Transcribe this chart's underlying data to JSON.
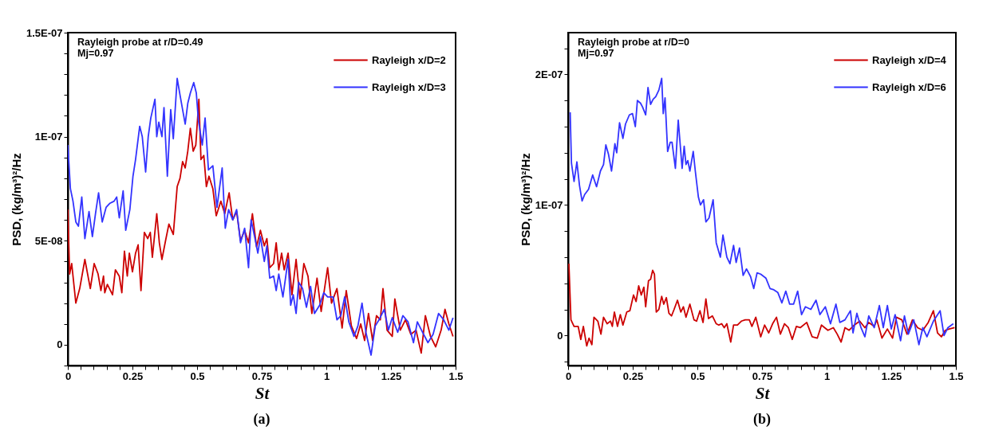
{
  "chart_data": [
    {
      "type": "line",
      "title": "(a)",
      "xlabel": "St",
      "ylabel": "PSD, (kg/m³)²/Hz",
      "annotations": [
        "Rayleigh probe at r/D=0.49",
        "Mj=0.97"
      ],
      "legend": "top right",
      "xlim": [
        0,
        1.5
      ],
      "ylim": [
        -1e-08,
        1.5e-07
      ],
      "xticks": [
        0,
        {
          "value": 0.05,
          "label": null
        },
        {
          "value": 0.1,
          "label": null
        },
        {
          "value": 0.15,
          "label": null
        },
        {
          "value": 0.2,
          "label": null
        },
        0.25,
        {
          "value": 0.3,
          "label": null
        },
        {
          "value": 0.35,
          "label": null
        },
        {
          "value": 0.4,
          "label": null
        },
        {
          "value": 0.45,
          "label": null
        },
        0.5,
        {
          "value": 0.55,
          "label": null
        },
        {
          "value": 0.6,
          "label": null
        },
        {
          "value": 0.65,
          "label": null
        },
        {
          "value": 0.7,
          "label": null
        },
        0.75,
        {
          "value": 0.8,
          "label": null
        },
        {
          "value": 0.85,
          "label": null
        },
        {
          "value": 0.9,
          "label": null
        },
        {
          "value": 0.95,
          "label": null
        },
        1,
        {
          "value": 1.05,
          "label": null
        },
        {
          "value": 1.1,
          "label": null
        },
        {
          "value": 1.15,
          "label": null
        },
        {
          "value": 1.2,
          "label": null
        },
        1.25,
        {
          "value": 1.3,
          "label": null
        },
        {
          "value": 1.35,
          "label": null
        },
        {
          "value": 1.4,
          "label": null
        },
        {
          "value": 1.45,
          "label": null
        },
        1.5
      ],
      "yticks": [
        {
          "value": -1e-08,
          "label": null
        },
        0,
        {
          "value": 1e-08,
          "label": null
        },
        {
          "value": 2e-08,
          "label": null
        },
        {
          "value": 3e-08,
          "label": null
        },
        {
          "value": 4e-08,
          "label": null
        },
        {
          "value": 5e-08,
          "label": "5E-08"
        },
        {
          "value": 6e-08,
          "label": null
        },
        {
          "value": 7e-08,
          "label": null
        },
        {
          "value": 8e-08,
          "label": null
        },
        {
          "value": 9e-08,
          "label": null
        },
        {
          "value": 1e-07,
          "label": "1E-07"
        },
        {
          "value": 1.1e-07,
          "label": null
        },
        {
          "value": 1.2e-07,
          "label": null
        },
        {
          "value": 1.3e-07,
          "label": null
        },
        {
          "value": 1.4e-07,
          "label": null
        },
        {
          "value": 1.5e-07,
          "label": "1.5E-07"
        }
      ],
      "series": [
        {
          "name": "Rayleigh x/D=2",
          "color": "#cc0000",
          "x": [
            0,
            0.007,
            0.015,
            0.031,
            0.046,
            0.066,
            0.087,
            0.102,
            0.117,
            0.128,
            0.138,
            0.143,
            0.153,
            0.173,
            0.184,
            0.199,
            0.209,
            0.219,
            0.23,
            0.238,
            0.25,
            0.262,
            0.272,
            0.283,
            0.296,
            0.309,
            0.319,
            0.327,
            0.344,
            0.354,
            0.364,
            0.378,
            0.391,
            0.408,
            0.423,
            0.434,
            0.444,
            0.454,
            0.464,
            0.474,
            0.485,
            0.495,
            0.507,
            0.515,
            0.526,
            0.536,
            0.546,
            0.561,
            0.574,
            0.592,
            0.607,
            0.624,
            0.638,
            0.653,
            0.668,
            0.684,
            0.699,
            0.714,
            0.73,
            0.745,
            0.76,
            0.77,
            0.781,
            0.796,
            0.806,
            0.816,
            0.827,
            0.837,
            0.852,
            0.867,
            0.883,
            0.898,
            0.913,
            0.929,
            0.944,
            0.964,
            0.98,
            1.005,
            1.02,
            1.041,
            1.061,
            1.077,
            1.097,
            1.117,
            1.133,
            1.148,
            1.163,
            1.179,
            1.194,
            1.209,
            1.219,
            1.235,
            1.255,
            1.265,
            1.286,
            1.306,
            1.327,
            1.347,
            1.367,
            1.383,
            1.403,
            1.423,
            1.444,
            1.459,
            1.474,
            1.49
          ],
          "values": [
            6.5e-08,
            3.4e-08,
            3.9e-08,
            2e-08,
            2.7e-08,
            4.1e-08,
            2.7e-08,
            3.9e-08,
            3.4e-08,
            2.6e-08,
            3.3e-08,
            2.5e-08,
            2.9e-08,
            2.4e-08,
            3.6e-08,
            3.3e-08,
            2.5e-08,
            4.5e-08,
            3.3e-08,
            4.4e-08,
            3.5e-08,
            4.4e-08,
            4.8e-08,
            2.6e-08,
            5.4e-08,
            5.1e-08,
            5.4e-08,
            4.2e-08,
            6.3e-08,
            4.9e-08,
            4.1e-08,
            5e-08,
            5.8e-08,
            5.3e-08,
            7.6e-08,
            8e-08,
            8.8e-08,
            8.5e-08,
            9.3e-08,
            1.04e-07,
            9.3e-08,
            9.6e-08,
            1.18e-07,
            8.9e-08,
            9.1e-08,
            7.6e-08,
            8.1e-08,
            7.5e-08,
            6.2e-08,
            6.9e-08,
            6.3e-08,
            7.3e-08,
            6e-08,
            6.4e-08,
            5e-08,
            5.5e-08,
            4.9e-08,
            6.3e-08,
            4.7e-08,
            5.5e-08,
            4.75e-08,
            5.1e-08,
            3.7e-08,
            3.9e-08,
            4.9e-08,
            3.6e-08,
            4.4e-08,
            3.6e-08,
            4.4e-08,
            2.4e-08,
            4.1e-08,
            2.2e-08,
            3.9e-08,
            3.3e-08,
            1.5e-08,
            3.2e-08,
            1.6e-08,
            3.7e-08,
            2e-08,
            2.7e-08,
            8e-09,
            2.6e-08,
            9e-09,
            3e-09,
            1e-08,
            2e-09,
            1.5e-08,
            2e-09,
            1.4e-08,
            1.2e-08,
            2.7e-08,
            7e-09,
            4e-09,
            2.2e-08,
            7e-09,
            1.2e-08,
            5e-09,
            7e-09,
            -4e-09,
            1.4e-08,
            4e-09,
            -1e-09,
            7e-09,
            1.7e-08,
            1e-08,
            4e-09
          ]
        },
        {
          "name": "Rayleigh x/D=3",
          "color": "#3333ff",
          "x": [
            0,
            0.01,
            0.02,
            0.031,
            0.041,
            0.054,
            0.066,
            0.082,
            0.095,
            0.107,
            0.119,
            0.133,
            0.148,
            0.163,
            0.179,
            0.189,
            0.199,
            0.214,
            0.224,
            0.24,
            0.252,
            0.262,
            0.278,
            0.288,
            0.301,
            0.311,
            0.321,
            0.337,
            0.344,
            0.352,
            0.364,
            0.372,
            0.385,
            0.398,
            0.408,
            0.423,
            0.434,
            0.444,
            0.454,
            0.464,
            0.474,
            0.487,
            0.497,
            0.505,
            0.52,
            0.531,
            0.544,
            0.561,
            0.577,
            0.597,
            0.609,
            0.622,
            0.638,
            0.653,
            0.668,
            0.684,
            0.699,
            0.709,
            0.724,
            0.735,
            0.745,
            0.76,
            0.77,
            0.781,
            0.796,
            0.806,
            0.816,
            0.832,
            0.852,
            0.862,
            0.872,
            0.883,
            0.893,
            0.908,
            0.923,
            0.939,
            0.954,
            0.974,
            0.99,
            1.005,
            1.026,
            1.041,
            1.056,
            1.071,
            1.087,
            1.107,
            1.122,
            1.138,
            1.153,
            1.173,
            1.189,
            1.204,
            1.224,
            1.24,
            1.255,
            1.276,
            1.296,
            1.316,
            1.337,
            1.352,
            1.372,
            1.393,
            1.413,
            1.434,
            1.454,
            1.474,
            1.49
          ],
          "values": [
            9.6e-08,
            7.5e-08,
            6.9e-08,
            5.9e-08,
            5.7e-08,
            7.1e-08,
            5.1e-08,
            6.4e-08,
            5.2e-08,
            6.3e-08,
            7.3e-08,
            5.9e-08,
            6.6e-08,
            6.8e-08,
            6.9e-08,
            7.1e-08,
            6.1e-08,
            7.4e-08,
            5.5e-08,
            6.5e-08,
            8.1e-08,
            8.9e-08,
            1.05e-07,
            1e-07,
            8.3e-08,
            1e-07,
            1.09e-07,
            1.18e-07,
            1e-07,
            1.07e-07,
            1e-07,
            1.14e-07,
            8.1e-08,
            1.13e-07,
            9.9e-08,
            1.28e-07,
            1.2e-07,
            1.13e-07,
            1.06e-07,
            1.16e-07,
            1.21e-07,
            1.26e-07,
            1.21e-07,
            1.08e-07,
            9.6e-08,
            1.09e-07,
            8.4e-08,
            8.6e-08,
            6.6e-08,
            8.5e-08,
            5.6e-08,
            6.5e-08,
            6e-08,
            6.5e-08,
            4.9e-08,
            5.6e-08,
            3.7e-08,
            6e-08,
            5.1e-08,
            4.4e-08,
            5.2e-08,
            4e-08,
            4.75e-08,
            3.2e-08,
            3.3e-08,
            2.6e-08,
            3.4e-08,
            2.3e-08,
            4.1e-08,
            1.9e-08,
            2.4e-08,
            1.5e-08,
            3e-08,
            2.7e-08,
            1.8e-08,
            2.8e-08,
            1.5e-08,
            1.9e-08,
            2.5e-08,
            2.3e-08,
            2.3e-08,
            1.2e-08,
            1.4e-08,
            2.3e-08,
            1.1e-08,
            4e-09,
            9e-09,
            2e-08,
            6e-09,
            -5e-09,
            9e-09,
            1.2e-08,
            1.7e-08,
            7e-09,
            1.3e-08,
            6e-09,
            1.4e-08,
            1.1e-08,
            1e-09,
            1.1e-08,
            6e-09,
            1e-09,
            5e-09,
            1.5e-08,
            1.2e-08,
            7e-09,
            1.3e-08
          ]
        }
      ]
    },
    {
      "type": "line",
      "title": "(b)",
      "xlabel": "St",
      "ylabel": "PSD, (kg/m³)²/Hz",
      "annotations": [
        "Rayleigh probe at r/D=0",
        "Mj=0.97"
      ],
      "legend": "top right",
      "xlim": [
        0,
        1.5
      ],
      "ylim": [
        -2.3e-08,
        2.32e-07
      ],
      "xticks": [
        0,
        {
          "value": 0.05,
          "label": null
        },
        {
          "value": 0.1,
          "label": null
        },
        {
          "value": 0.15,
          "label": null
        },
        {
          "value": 0.2,
          "label": null
        },
        0.25,
        {
          "value": 0.3,
          "label": null
        },
        {
          "value": 0.35,
          "label": null
        },
        {
          "value": 0.4,
          "label": null
        },
        {
          "value": 0.45,
          "label": null
        },
        0.5,
        {
          "value": 0.55,
          "label": null
        },
        {
          "value": 0.6,
          "label": null
        },
        {
          "value": 0.65,
          "label": null
        },
        {
          "value": 0.7,
          "label": null
        },
        0.75,
        {
          "value": 0.8,
          "label": null
        },
        {
          "value": 0.85,
          "label": null
        },
        {
          "value": 0.9,
          "label": null
        },
        {
          "value": 0.95,
          "label": null
        },
        1,
        {
          "value": 1.05,
          "label": null
        },
        {
          "value": 1.1,
          "label": null
        },
        {
          "value": 1.15,
          "label": null
        },
        {
          "value": 1.2,
          "label": null
        },
        1.25,
        {
          "value": 1.3,
          "label": null
        },
        {
          "value": 1.35,
          "label": null
        },
        {
          "value": 1.4,
          "label": null
        },
        {
          "value": 1.45,
          "label": null
        },
        1.5
      ],
      "yticks": [
        {
          "value": -2e-08,
          "label": null
        },
        0,
        {
          "value": 2e-08,
          "label": null
        },
        {
          "value": 4e-08,
          "label": null
        },
        {
          "value": 6e-08,
          "label": null
        },
        {
          "value": 8e-08,
          "label": null
        },
        {
          "value": 1e-07,
          "label": "1E-07"
        },
        {
          "value": 1.2e-07,
          "label": null
        },
        {
          "value": 1.4e-07,
          "label": null
        },
        {
          "value": 1.6e-07,
          "label": null
        },
        {
          "value": 1.8e-07,
          "label": null
        },
        {
          "value": 2e-07,
          "label": "2E-07"
        },
        {
          "value": 2.2e-07,
          "label": null
        }
      ],
      "series": [
        {
          "name": "Rayleigh x/D=4",
          "color": "#cc0000",
          "x": [
            0.003,
            0.011,
            0.023,
            0.039,
            0.049,
            0.059,
            0.072,
            0.081,
            0.092,
            0.1,
            0.115,
            0.127,
            0.137,
            0.151,
            0.164,
            0.171,
            0.179,
            0.191,
            0.202,
            0.212,
            0.227,
            0.239,
            0.253,
            0.263,
            0.273,
            0.283,
            0.293,
            0.3,
            0.311,
            0.319,
            0.327,
            0.334,
            0.341,
            0.351,
            0.362,
            0.37,
            0.38,
            0.39,
            0.4,
            0.41,
            0.423,
            0.436,
            0.446,
            0.456,
            0.471,
            0.487,
            0.497,
            0.51,
            0.522,
            0.533,
            0.543,
            0.558,
            0.573,
            0.583,
            0.594,
            0.604,
            0.614,
            0.629,
            0.64,
            0.655,
            0.67,
            0.685,
            0.701,
            0.711,
            0.726,
            0.745,
            0.76,
            0.776,
            0.791,
            0.806,
            0.821,
            0.837,
            0.852,
            0.867,
            0.883,
            0.898,
            0.923,
            0.944,
            0.964,
            0.98,
            1.005,
            1.026,
            1.041,
            1.056,
            1.071,
            1.087,
            1.107,
            1.128,
            1.148,
            1.163,
            1.184,
            1.194,
            1.214,
            1.235,
            1.255,
            1.27,
            1.291,
            1.311,
            1.332,
            1.352,
            1.372,
            1.393,
            1.413,
            1.429,
            1.444,
            1.459,
            1.474,
            1.495
          ],
          "values": [
            5.5e-08,
            1.2e-08,
            7e-09,
            7e-09,
            -3e-09,
            7e-09,
            -8e-09,
            -2e-09,
            -7e-09,
            1.4e-08,
            1.1e-08,
            1e-09,
            1.4e-08,
            9e-09,
            1.1e-08,
            7e-09,
            1.8e-08,
            7e-09,
            1.6e-08,
            8e-09,
            1.8e-08,
            1.9e-08,
            3.1e-08,
            2.6e-08,
            3.8e-08,
            3.1e-08,
            3.7e-08,
            2.2e-08,
            4.2e-08,
            4.3e-08,
            5e-08,
            4.7e-08,
            1.8e-08,
            2e-08,
            3e-08,
            2.4e-08,
            2.9e-08,
            1.7e-08,
            1.5e-08,
            2e-08,
            2.7e-08,
            1.8e-08,
            2.2e-08,
            1.4e-08,
            2.4e-08,
            1.2e-08,
            1.1e-08,
            1.9e-08,
            1e-08,
            2.8e-08,
            1.3e-08,
            1.5e-08,
            9e-09,
            8e-09,
            9e-09,
            6e-09,
            9e-09,
            -5e-09,
            8e-09,
            8e-09,
            1.1e-08,
            1.2e-08,
            1.2e-08,
            7e-09,
            1.4e-08,
            -1e-09,
            8e-09,
            2e-09,
            9e-09,
            1.4e-08,
            1e-09,
            9e-09,
            6e-09,
            -3e-09,
            7e-09,
            6e-09,
            1e-08,
            -1e-09,
            -2e-09,
            8e-09,
            4e-09,
            6e-09,
            1e-09,
            -5e-09,
            6e-09,
            4e-09,
            8e-09,
            1.1e-08,
            6e-09,
            1e-08,
            7e-09,
            1.2e-08,
            -2e-09,
            5e-09,
            -2e-09,
            1.4e-08,
            1.2e-08,
            1e-09,
            1.2e-08,
            6e-09,
            4e-09,
            1e-08,
            1.9e-08,
            2e-09,
            -1e-09,
            4e-09,
            5e-09,
            6e-09
          ]
        },
        {
          "name": "Rayleigh x/D=6",
          "color": "#3333ff",
          "x": [
            0.008,
            0.013,
            0.023,
            0.034,
            0.044,
            0.054,
            0.064,
            0.079,
            0.095,
            0.11,
            0.125,
            0.137,
            0.146,
            0.156,
            0.168,
            0.181,
            0.188,
            0.199,
            0.212,
            0.222,
            0.237,
            0.249,
            0.26,
            0.268,
            0.28,
            0.288,
            0.3,
            0.309,
            0.319,
            0.329,
            0.339,
            0.351,
            0.362,
            0.368,
            0.375,
            0.385,
            0.395,
            0.402,
            0.415,
            0.426,
            0.441,
            0.449,
            0.456,
            0.463,
            0.471,
            0.484,
            0.492,
            0.504,
            0.512,
            0.524,
            0.533,
            0.545,
            0.561,
            0.573,
            0.589,
            0.599,
            0.614,
            0.626,
            0.64,
            0.65,
            0.663,
            0.677,
            0.69,
            0.706,
            0.718,
            0.731,
            0.745,
            0.765,
            0.781,
            0.796,
            0.811,
            0.827,
            0.842,
            0.857,
            0.872,
            0.888,
            0.903,
            0.918,
            0.939,
            0.959,
            0.974,
            0.995,
            1.015,
            1.036,
            1.051,
            1.071,
            1.092,
            1.102,
            1.117,
            1.133,
            1.148,
            1.163,
            1.184,
            1.204,
            1.219,
            1.235,
            1.25,
            1.265,
            1.286,
            1.301,
            1.316,
            1.337,
            1.357,
            1.372,
            1.388,
            1.413,
            1.439,
            1.454,
            1.469,
            1.49
          ],
          "values": [
            1.71e-07,
            1.32e-07,
            1.18e-07,
            1.33e-07,
            1.15e-07,
            1.03e-07,
            1.08e-07,
            1.12e-07,
            1.23e-07,
            1.14e-07,
            1.26e-07,
            1.31e-07,
            1.46e-07,
            1.39e-07,
            1.26e-07,
            1.47e-07,
            1.4e-07,
            1.63e-07,
            1.51e-07,
            1.62e-07,
            1.69e-07,
            1.7e-07,
            1.6e-07,
            1.8e-07,
            1.78e-07,
            1.75e-07,
            1.69e-07,
            1.9e-07,
            1.77e-07,
            1.81e-07,
            1.83e-07,
            1.88e-07,
            1.97e-07,
            1.7e-07,
            1.82e-07,
            1.41e-07,
            1.48e-07,
            1.48e-07,
            1.28e-07,
            1.65e-07,
            1.28e-07,
            1.45e-07,
            1.31e-07,
            1.34e-07,
            1.26e-07,
            1.41e-07,
            1.26e-07,
            1.06e-07,
            1e-07,
            1.04e-07,
            8.7e-08,
            9e-08,
            1.04e-07,
            7.1e-08,
            6e-08,
            7.7e-08,
            6e-08,
            5.5e-08,
            6.9e-08,
            5.6e-08,
            6.7e-08,
            4.6e-08,
            5.1e-08,
            4.5e-08,
            3.6e-08,
            4.8e-08,
            4.7e-08,
            4.4e-08,
            3.6e-08,
            3.5e-08,
            3.3e-08,
            2.5e-08,
            3.4e-08,
            2.4e-08,
            2.4e-08,
            3.4e-08,
            1.6e-08,
            2.2e-08,
            2e-08,
            2.7e-08,
            1.6e-08,
            2.2e-08,
            9e-09,
            2.4e-08,
            1e-08,
            1.2e-08,
            1.9e-08,
            2e-09,
            1.7e-08,
            6e-09,
            -1e-09,
            1.5e-08,
            6e-09,
            2.3e-08,
            6e-09,
            2.3e-08,
            5e-09,
            1.6e-08,
            -4e-09,
            1.5e-08,
            1e-09,
            1.2e-08,
            -7e-09,
            6e-09,
            -1e-09,
            1.1e-08,
            1.9e-08,
            0,
            6e-09,
            9e-09
          ]
        }
      ]
    }
  ]
}
